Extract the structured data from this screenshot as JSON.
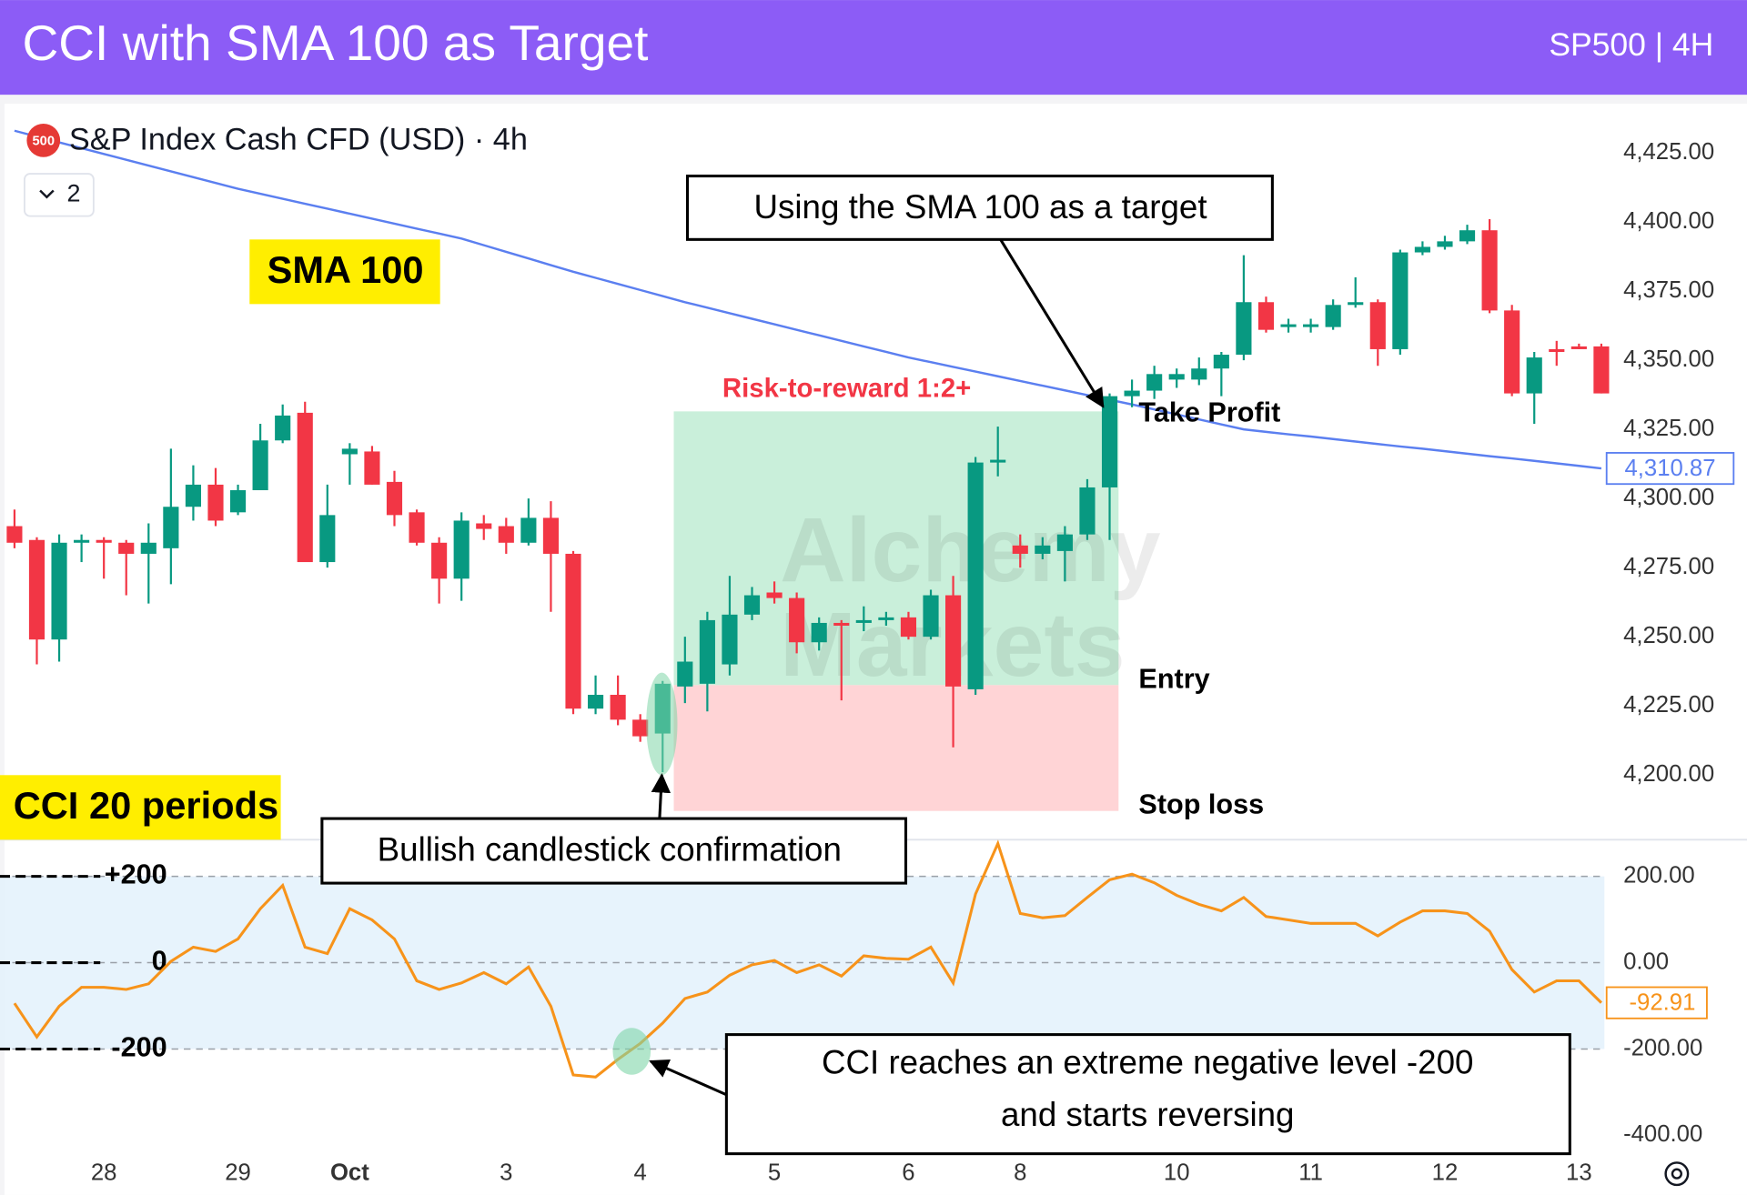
{
  "header": {
    "title": "CCI with SMA 100 as Target",
    "symbol_tag": "SP500 | 4H"
  },
  "chart_data": [
    {
      "type": "candlestick",
      "title": "S&P Index Cash CFD (USD) · 4h",
      "badge": "500",
      "collapsed_studies": 2,
      "categories": [
        null,
        null,
        null,
        null,
        "28",
        null,
        null,
        null,
        null,
        null,
        "29",
        null,
        null,
        null,
        null,
        "Oct",
        null,
        null,
        null,
        null,
        null,
        null,
        "3",
        null,
        null,
        null,
        null,
        null,
        "4",
        null,
        null,
        null,
        null,
        null,
        "5",
        null,
        null,
        null,
        null,
        null,
        "6",
        null,
        null,
        null,
        null,
        "8",
        null,
        null,
        null,
        null,
        null,
        null,
        "10",
        null,
        null,
        null,
        null,
        null,
        "11",
        null,
        null,
        null,
        null,
        null,
        "12",
        null,
        null,
        null,
        null,
        null,
        "13",
        null
      ],
      "open": [
        4290,
        4285,
        4249,
        4284,
        4285,
        4284,
        4280,
        4282,
        4297,
        4305,
        4295,
        4303,
        4321,
        4331,
        4277,
        4316,
        4317,
        4306,
        4295,
        4284,
        4271,
        4291,
        4290,
        4284,
        4293,
        4280,
        4224,
        4229,
        4220,
        4215,
        4232,
        4233,
        4240,
        4258,
        4266,
        4264,
        4248,
        4255,
        4255,
        4256,
        4257,
        4250,
        4265,
        4231,
        4313,
        4283,
        4280,
        4281,
        4287,
        4304,
        4337,
        4339,
        4343,
        4343,
        4347,
        4352,
        4371,
        4362,
        4362,
        4362,
        4370,
        4371,
        4354,
        4389,
        4391,
        4393,
        4397,
        4368,
        4338,
        4354,
        4355,
        4355
      ],
      "high": [
        4296,
        4286,
        4287,
        4287,
        4286,
        4285,
        4291,
        4318,
        4312,
        4311,
        4305,
        4327,
        4334,
        4335,
        4305,
        4320,
        4319,
        4310,
        4296,
        4286,
        4295,
        4294,
        4293,
        4300,
        4299,
        4281,
        4236,
        4236,
        4222,
        4234,
        4250,
        4259,
        4272,
        4268,
        4270,
        4266,
        4257,
        4256,
        4261,
        4259,
        4259,
        4267,
        4272,
        4315,
        4326,
        4287,
        4286,
        4290,
        4307,
        4338,
        4343,
        4348,
        4347,
        4351,
        4353,
        4388,
        4373,
        4365,
        4365,
        4372,
        4380,
        4372,
        4390,
        4393,
        4395,
        4399,
        4401,
        4370,
        4353,
        4357,
        4356,
        4356
      ],
      "low": [
        4282,
        4240,
        4241,
        4277,
        4271,
        4265,
        4262,
        4269,
        4292,
        4290,
        4294,
        4303,
        4320,
        4277,
        4275,
        4305,
        4305,
        4290,
        4283,
        4262,
        4263,
        4285,
        4280,
        4283,
        4259,
        4222,
        4222,
        4218,
        4212,
        4201,
        4226,
        4223,
        4236,
        4256,
        4262,
        4244,
        4245,
        4227,
        4252,
        4254,
        4249,
        4249,
        4210,
        4229,
        4308,
        4275,
        4278,
        4270,
        4285,
        4285,
        4333,
        4336,
        4340,
        4341,
        4337,
        4350,
        4360,
        4360,
        4360,
        4361,
        4369,
        4348,
        4352,
        4388,
        4390,
        4392,
        4367,
        4337,
        4327,
        4348,
        4354,
        4338
      ],
      "close": [
        4284,
        4249,
        4284,
        4285,
        4284,
        4280,
        4284,
        4297,
        4305,
        4292,
        4303,
        4321,
        4330,
        4277,
        4294,
        4318,
        4305,
        4294,
        4284,
        4271,
        4292,
        4289,
        4284,
        4293,
        4280,
        4224,
        4229,
        4220,
        4214,
        4233,
        4241,
        4256,
        4258,
        4265,
        4264,
        4248,
        4255,
        4254,
        4256,
        4257,
        4250,
        4265,
        4232,
        4313,
        4314,
        4280,
        4283,
        4287,
        4304,
        4337,
        4339,
        4345,
        4345,
        4347,
        4352,
        4371,
        4361,
        4363,
        4363,
        4370,
        4371,
        4354,
        4389,
        4391,
        4393,
        4397,
        4368,
        4338,
        4351,
        4353,
        4354,
        4338
      ],
      "up_color": "#089981",
      "down_color": "#f23645",
      "series": [
        {
          "name": "SMA 100",
          "color": "#5b7ff0",
          "values": [
            4433,
            4430.9,
            4428.8,
            4426.7,
            4424.6,
            4422.5,
            4420.4,
            4418.3,
            4416.2,
            4414.1,
            4412,
            4410.2,
            4408.4,
            4406.6,
            4404.8,
            4403,
            4401.2,
            4399.4,
            4397.6,
            4395.8,
            4394,
            4391.6,
            4389.2,
            4386.8,
            4384.4,
            4382,
            4379.8,
            4377.6,
            4375.4,
            4373.2,
            4371,
            4369,
            4367,
            4365,
            4363,
            4361,
            4359,
            4357,
            4355,
            4353,
            4351,
            4349.3,
            4347.6,
            4345.9,
            4344.2,
            4342.5,
            4340.8,
            4339.1,
            4337.4,
            4335.7,
            4334,
            4332.2,
            4330.4,
            4328.6,
            4326.8,
            4325,
            4324.1,
            4323.2,
            4322.4,
            4321.5,
            4320.6,
            4319.7,
            4318.8,
            4318,
            4317.1,
            4316.2,
            4315.3,
            4314.5,
            4313.6,
            4312.7,
            4311.8,
            4310.87
          ],
          "last_label": "4,310.87"
        }
      ],
      "ylim": [
        4177,
        4442
      ],
      "yticks": [
        {
          "value": 4200,
          "label": "4,200.00"
        },
        {
          "value": 4225,
          "label": "4,225.00"
        },
        {
          "value": 4250,
          "label": "4,250.00"
        },
        {
          "value": 4275,
          "label": "4,275.00"
        },
        {
          "value": 4300,
          "label": "4,300.00"
        },
        {
          "value": 4325,
          "label": "4,325.00"
        },
        {
          "value": 4350,
          "label": "4,350.00"
        },
        {
          "value": 4375,
          "label": "4,375.00"
        },
        {
          "value": 4400,
          "label": "4,400.00"
        },
        {
          "value": 4425,
          "label": "4,425.00"
        }
      ],
      "grid": false,
      "position": {
        "take_profit": 4331.5,
        "entry": 4232.5,
        "stop_loss": 4187
      },
      "annotations": {
        "callout": "Using the SMA 100 as a target",
        "risk_reward": "Risk-to-reward 1:2+",
        "take_profit_label": "Take Profit",
        "entry_label": "Entry",
        "stop_label": "Stop loss",
        "confirmation": "Bullish candlestick confirmation",
        "watermark": [
          "Alchemy",
          "Markets"
        ]
      }
    },
    {
      "type": "line",
      "series": [
        {
          "name": "CCI 20 periods",
          "color": "#f7931a",
          "values": [
            -94,
            -172,
            -101,
            -57,
            -57,
            -62,
            -49,
            3,
            36,
            26,
            55,
            125,
            179,
            36,
            21,
            125,
            99,
            55,
            -42,
            -62,
            -47,
            -23,
            -49,
            -10,
            -101,
            -260,
            -265,
            -224,
            -187,
            -140,
            -83,
            -68,
            -29,
            -5,
            5,
            -23,
            -5,
            -31,
            16,
            10,
            8,
            36,
            -47,
            159,
            276,
            114,
            104,
            109,
            151,
            192,
            205,
            185,
            156,
            135,
            120,
            151,
            107,
            99,
            91,
            91,
            91,
            62,
            94,
            120,
            120,
            114,
            73,
            -16,
            -68,
            -42,
            -42,
            -92.91
          ]
        }
      ],
      "ylim": [
        -440,
        290
      ],
      "yticks": [
        {
          "value": 200,
          "label": "200.00"
        },
        {
          "value": 0,
          "label": "0.00"
        },
        {
          "value": -200,
          "label": "-200.00"
        },
        {
          "value": -400,
          "label": "-400.00"
        }
      ],
      "levels": [
        {
          "value": 200,
          "label": "+200"
        },
        0,
        -200
      ],
      "grid": false,
      "annotations": {
        "callout": [
          "CCI reaches an extreme negative level -200",
          "and starts reversing"
        ]
      }
    }
  ]
}
